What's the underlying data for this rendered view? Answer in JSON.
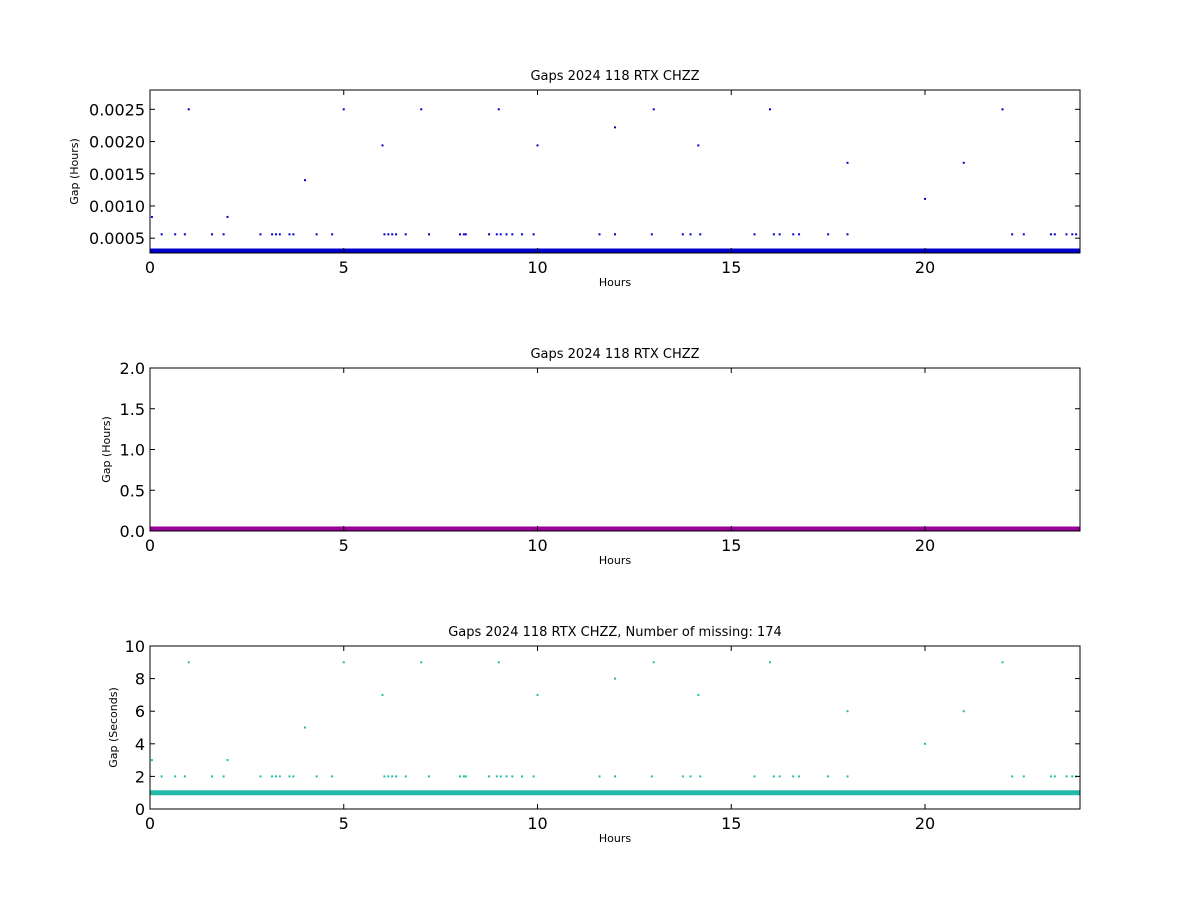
{
  "chart_data": [
    {
      "type": "scatter",
      "title": "Gaps 2024 118 RTX  CHZZ",
      "xlabel": "Hours",
      "ylabel": "Gap (Hours)",
      "xlim": [
        0,
        24
      ],
      "ylim": [
        0.00027,
        0.0028
      ],
      "xticks": [
        "0",
        "5",
        "10",
        "15",
        "20"
      ],
      "yticks": [
        "0.0005",
        "0.0010",
        "0.0015",
        "0.0020",
        "0.0025"
      ],
      "grid": false,
      "color": "#0000cc",
      "baseline": 0.000278,
      "points": [
        [
          0.05,
          0.00083
        ],
        [
          0.3,
          0.00056
        ],
        [
          0.65,
          0.00056
        ],
        [
          0.9,
          0.00056
        ],
        [
          1.0,
          0.0025
        ],
        [
          1.6,
          0.00056
        ],
        [
          1.9,
          0.00056
        ],
        [
          2.0,
          0.00083
        ],
        [
          2.85,
          0.00056
        ],
        [
          3.15,
          0.00056
        ],
        [
          3.25,
          0.00056
        ],
        [
          3.35,
          0.00056
        ],
        [
          3.6,
          0.00056
        ],
        [
          3.7,
          0.00056
        ],
        [
          4.0,
          0.0014
        ],
        [
          4.3,
          0.00056
        ],
        [
          4.7,
          0.00056
        ],
        [
          5.0,
          0.0025
        ],
        [
          6.0,
          0.00194
        ],
        [
          6.05,
          0.00056
        ],
        [
          6.15,
          0.00056
        ],
        [
          6.25,
          0.00056
        ],
        [
          6.35,
          0.00056
        ],
        [
          6.6,
          0.00056
        ],
        [
          7.0,
          0.0025
        ],
        [
          7.2,
          0.00056
        ],
        [
          8.0,
          0.00056
        ],
        [
          8.1,
          0.00056
        ],
        [
          8.15,
          0.00056
        ],
        [
          8.75,
          0.00056
        ],
        [
          9.0,
          0.0025
        ],
        [
          8.95,
          0.00056
        ],
        [
          9.05,
          0.00056
        ],
        [
          9.2,
          0.00056
        ],
        [
          9.35,
          0.00056
        ],
        [
          9.6,
          0.00056
        ],
        [
          9.9,
          0.00056
        ],
        [
          10.0,
          0.00194
        ],
        [
          11.6,
          0.00056
        ],
        [
          12.0,
          0.00222
        ],
        [
          12.0,
          0.00056
        ],
        [
          13.0,
          0.0025
        ],
        [
          12.95,
          0.00056
        ],
        [
          13.75,
          0.00056
        ],
        [
          13.95,
          0.00056
        ],
        [
          14.15,
          0.00194
        ],
        [
          14.2,
          0.00056
        ],
        [
          15.6,
          0.00056
        ],
        [
          16.0,
          0.0025
        ],
        [
          16.1,
          0.00056
        ],
        [
          16.25,
          0.00056
        ],
        [
          16.6,
          0.00056
        ],
        [
          16.75,
          0.00056
        ],
        [
          17.5,
          0.00056
        ],
        [
          18.0,
          0.00167
        ],
        [
          18.0,
          0.00056
        ],
        [
          20.0,
          0.00111
        ],
        [
          21.0,
          0.00167
        ],
        [
          22.0,
          0.0025
        ],
        [
          22.25,
          0.00056
        ],
        [
          22.55,
          0.00056
        ],
        [
          23.25,
          0.00056
        ],
        [
          23.35,
          0.00056
        ],
        [
          23.65,
          0.00056
        ],
        [
          23.8,
          0.00056
        ],
        [
          23.9,
          0.00056
        ]
      ]
    },
    {
      "type": "scatter",
      "title": "Gaps 2024 118 RTX  CHZZ",
      "xlabel": "Hours",
      "ylabel": "Gap (Hours)",
      "xlim": [
        0,
        24
      ],
      "ylim": [
        0,
        2.0
      ],
      "xticks": [
        "0",
        "5",
        "10",
        "15",
        "20"
      ],
      "yticks": [
        "0.0",
        "0.5",
        "1.0",
        "1.5",
        "2.0"
      ],
      "grid": false,
      "color": "#990099",
      "baseline": 0.0,
      "points": []
    },
    {
      "type": "scatter",
      "title": "Gaps 2024 118 RTX  CHZZ, Number of missing: 174",
      "xlabel": "Hours",
      "ylabel": "Gap (Seconds)",
      "xlim": [
        0,
        24
      ],
      "ylim": [
        0,
        10
      ],
      "xticks": [
        "0",
        "5",
        "10",
        "15",
        "20"
      ],
      "yticks": [
        "0",
        "2",
        "4",
        "6",
        "8",
        "10"
      ],
      "grid": false,
      "color": "#22bbaa",
      "baseline": 1.0,
      "points": [
        [
          0.05,
          3
        ],
        [
          0.3,
          2
        ],
        [
          0.65,
          2
        ],
        [
          0.9,
          2
        ],
        [
          1.0,
          9
        ],
        [
          1.6,
          2
        ],
        [
          1.9,
          2
        ],
        [
          2.0,
          3
        ],
        [
          2.85,
          2
        ],
        [
          3.15,
          2
        ],
        [
          3.25,
          2
        ],
        [
          3.35,
          2
        ],
        [
          3.6,
          2
        ],
        [
          3.7,
          2
        ],
        [
          4.0,
          5
        ],
        [
          4.3,
          2
        ],
        [
          4.7,
          2
        ],
        [
          5.0,
          9
        ],
        [
          6.0,
          7
        ],
        [
          6.05,
          2
        ],
        [
          6.15,
          2
        ],
        [
          6.25,
          2
        ],
        [
          6.35,
          2
        ],
        [
          6.6,
          2
        ],
        [
          7.0,
          9
        ],
        [
          7.2,
          2
        ],
        [
          8.0,
          2
        ],
        [
          8.1,
          2
        ],
        [
          8.15,
          2
        ],
        [
          8.75,
          2
        ],
        [
          9.0,
          9
        ],
        [
          8.95,
          2
        ],
        [
          9.05,
          2
        ],
        [
          9.2,
          2
        ],
        [
          9.35,
          2
        ],
        [
          9.6,
          2
        ],
        [
          9.9,
          2
        ],
        [
          10.0,
          7
        ],
        [
          11.6,
          2
        ],
        [
          12.0,
          8
        ],
        [
          12.0,
          2
        ],
        [
          13.0,
          9
        ],
        [
          12.95,
          2
        ],
        [
          13.75,
          2
        ],
        [
          13.95,
          2
        ],
        [
          14.15,
          7
        ],
        [
          14.2,
          2
        ],
        [
          15.6,
          2
        ],
        [
          16.0,
          9
        ],
        [
          16.1,
          2
        ],
        [
          16.25,
          2
        ],
        [
          16.6,
          2
        ],
        [
          16.75,
          2
        ],
        [
          17.5,
          2
        ],
        [
          18.0,
          6
        ],
        [
          18.0,
          2
        ],
        [
          20.0,
          4
        ],
        [
          21.0,
          6
        ],
        [
          22.0,
          9
        ],
        [
          22.25,
          2
        ],
        [
          22.55,
          2
        ],
        [
          23.25,
          2
        ],
        [
          23.35,
          2
        ],
        [
          23.65,
          2
        ],
        [
          23.8,
          2
        ],
        [
          23.9,
          2
        ]
      ]
    }
  ]
}
